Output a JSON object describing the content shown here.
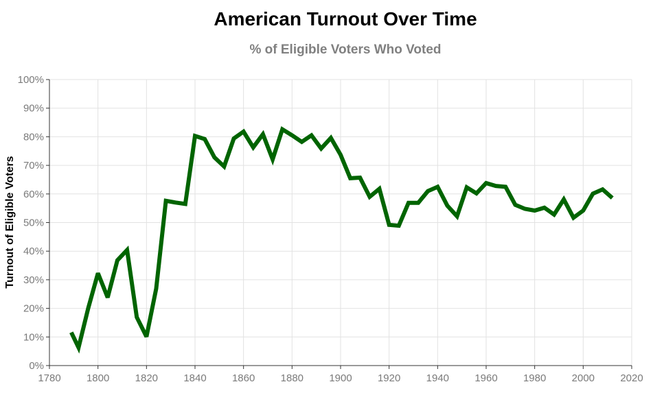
{
  "chart_data": {
    "type": "line",
    "title": "American Turnout Over Time",
    "subtitle": "% of Eligible Voters Who Voted",
    "xlabel": "",
    "ylabel": "Turnout of Eligible Voters",
    "xlim": [
      1780,
      2020
    ],
    "ylim": [
      0,
      100
    ],
    "x_ticks": [
      1780,
      1800,
      1820,
      1840,
      1860,
      1880,
      1900,
      1920,
      1940,
      1960,
      1980,
      2000,
      2020
    ],
    "x_tick_labels": [
      "1780",
      "1800",
      "1820",
      "1840",
      "1860",
      "1880",
      "1900",
      "1920",
      "1940",
      "1960",
      "1980",
      "2000",
      "2020"
    ],
    "y_ticks": [
      0,
      10,
      20,
      30,
      40,
      50,
      60,
      70,
      80,
      90,
      100
    ],
    "y_tick_labels": [
      "0%",
      "10%",
      "20%",
      "30%",
      "40%",
      "50%",
      "60%",
      "70%",
      "80%",
      "90%",
      "100%"
    ],
    "grid": true,
    "legend": "none",
    "series": [
      {
        "color": "#006400",
        "x": [
          1789,
          1792,
          1796,
          1800,
          1804,
          1808,
          1812,
          1816,
          1820,
          1824,
          1828,
          1832,
          1836,
          1840,
          1844,
          1848,
          1852,
          1856,
          1860,
          1864,
          1868,
          1872,
          1876,
          1880,
          1884,
          1888,
          1892,
          1896,
          1900,
          1904,
          1908,
          1912,
          1916,
          1920,
          1924,
          1928,
          1932,
          1936,
          1940,
          1944,
          1948,
          1952,
          1956,
          1960,
          1964,
          1968,
          1972,
          1976,
          1980,
          1984,
          1988,
          1992,
          1996,
          2000,
          2004,
          2008,
          2012
        ],
        "y": [
          11.6,
          6.3,
          20.1,
          32.3,
          23.8,
          36.8,
          40.4,
          16.9,
          10.1,
          26.9,
          57.6,
          57.0,
          56.5,
          80.3,
          79.2,
          72.8,
          69.6,
          79.4,
          81.8,
          76.3,
          80.9,
          72.1,
          82.6,
          80.5,
          78.2,
          80.5,
          75.9,
          79.6,
          73.7,
          65.5,
          65.7,
          59.0,
          61.8,
          49.2,
          48.9,
          56.9,
          56.9,
          61.0,
          62.5,
          55.9,
          52.2,
          62.3,
          60.2,
          63.8,
          62.8,
          62.5,
          56.2,
          54.8,
          54.2,
          55.2,
          52.8,
          58.1,
          51.7,
          54.2,
          60.1,
          61.6,
          58.6
        ]
      }
    ]
  }
}
